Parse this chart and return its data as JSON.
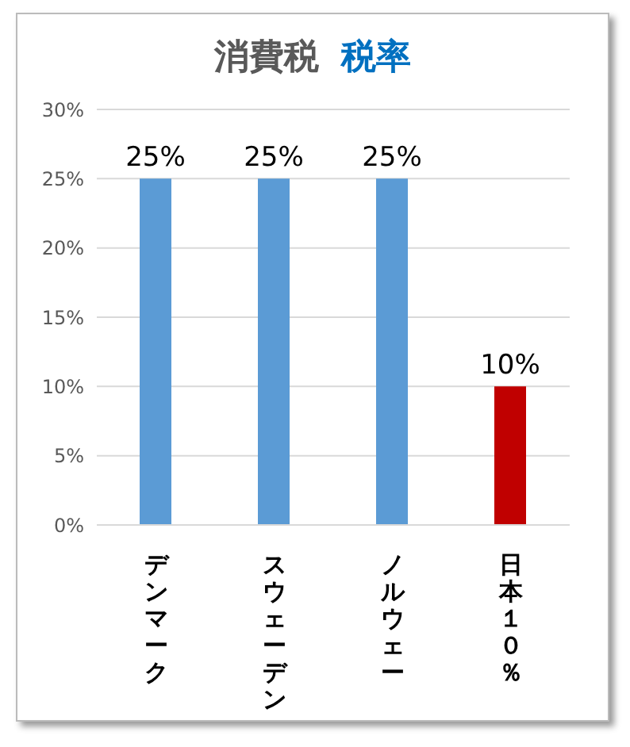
{
  "chart_data": {
    "type": "bar",
    "title": "消費税 税率",
    "categories": [
      "デンマーク",
      "スウェーデン",
      "ノルウェー",
      "日本１０％"
    ],
    "values": [
      25,
      25,
      25,
      10
    ],
    "colors": [
      "#5b9bd5",
      "#5b9bd5",
      "#5b9bd5",
      "#c00000"
    ],
    "value_labels": [
      "25%",
      "25%",
      "25%",
      "10%"
    ],
    "ylim": [
      0,
      30
    ],
    "yticks": [
      {
        "value": 0,
        "label": "0%"
      },
      {
        "value": 5,
        "label": "5%"
      },
      {
        "value": 10,
        "label": "10%"
      },
      {
        "value": 15,
        "label": "15%"
      },
      {
        "value": 20,
        "label": "20%"
      },
      {
        "value": 25,
        "label": "25%"
      },
      {
        "value": 30,
        "label": "30%"
      }
    ],
    "grid": "y",
    "legend": false
  }
}
